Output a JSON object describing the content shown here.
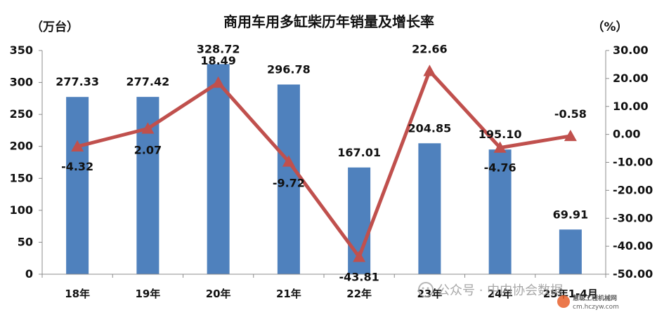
{
  "chart_data": {
    "type": "bar",
    "title": "商用车用多缸柴历年销量及增长率",
    "left_unit": "（万台）",
    "right_unit": "（%）",
    "categories": [
      "18年",
      "19年",
      "20年",
      "21年",
      "22年",
      "23年",
      "24年",
      "25年1-4月"
    ],
    "series": [
      {
        "type": "bar",
        "values": [
          277.33,
          277.42,
          328.72,
          296.78,
          167.01,
          204.85,
          195.1,
          69.91
        ],
        "labels": [
          "277.33",
          "277.42",
          "328.72",
          "296.78",
          "167.01",
          "204.85",
          "195.10",
          "69.91"
        ],
        "color": "#4f81bd",
        "axis": "left"
      },
      {
        "type": "line",
        "values": [
          -4.32,
          2.07,
          18.49,
          -9.72,
          -43.81,
          22.66,
          -4.76,
          -0.58
        ],
        "labels": [
          "-4.32",
          "2.07",
          "18.49",
          "-9.72",
          "-43.81",
          "22.66",
          "-4.76",
          "-0.58"
        ],
        "color": "#c0504d",
        "marker": "triangle",
        "axis": "right"
      }
    ],
    "ylim_left": [
      0,
      350
    ],
    "yticks_left": [
      "0",
      "50",
      "100",
      "150",
      "200",
      "250",
      "300",
      "350"
    ],
    "ylim_right": [
      -50,
      30
    ],
    "yticks_right": [
      "-50.00",
      "-40.00",
      "-30.00",
      "-20.00",
      "-10.00",
      "0.00",
      "10.00",
      "20.00",
      "30.00"
    ],
    "grid": false,
    "legend": "none"
  },
  "watermark": {
    "text": "公众号 · 中内协会数据",
    "logo_text": "慧聪工程机械网",
    "logo_url": "cm.hczyw.com"
  }
}
